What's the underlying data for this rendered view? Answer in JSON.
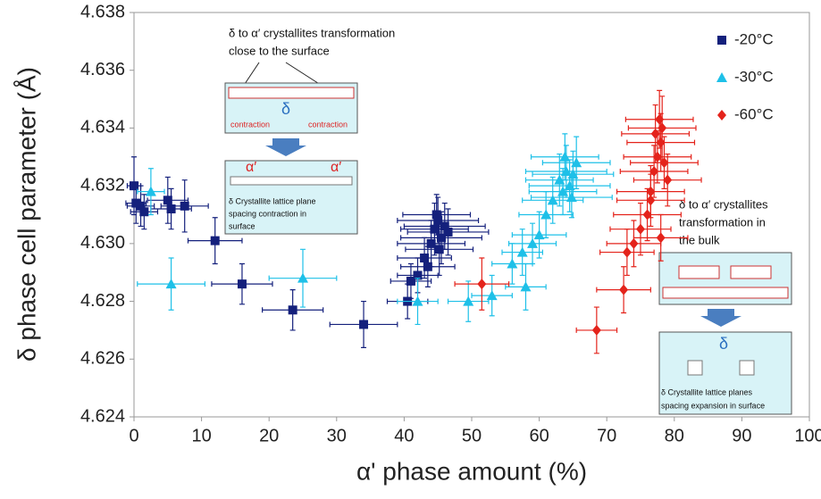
{
  "chart_data": {
    "type": "scatter",
    "xlabel": "α' phase amount (%)",
    "ylabel": "δ phase cell parameter (Å)",
    "xlim": [
      0,
      100
    ],
    "xticks": [
      0,
      10,
      20,
      30,
      40,
      50,
      60,
      70,
      80,
      90,
      100
    ],
    "ylim": [
      4.624,
      4.638
    ],
    "yticks": [
      4.624,
      4.626,
      4.628,
      {
        "value": 4.63,
        "label": "4.630"
      },
      4.632,
      4.634,
      4.636,
      4.638
    ],
    "legend": "top-right",
    "series": [
      {
        "name": "-20°C",
        "color": "#14207c",
        "marker": "square",
        "x": [
          0,
          0.3,
          1,
          1.5,
          5,
          5.5,
          7.5,
          12,
          16,
          23.5,
          34,
          40.5,
          41,
          42,
          43,
          43.5,
          44,
          44.5,
          45,
          45.5,
          46,
          44.8,
          45.2,
          46.5
        ],
        "y": [
          4.632,
          4.6314,
          4.6313,
          4.6311,
          4.6315,
          4.6312,
          4.6313,
          4.6301,
          4.6286,
          4.6277,
          4.6272,
          4.628,
          4.6287,
          4.6289,
          4.6295,
          4.6292,
          4.63,
          4.6305,
          4.6308,
          4.6302,
          4.6306,
          4.631,
          4.6298,
          4.6304
        ],
        "x_err": [
          1,
          1.5,
          2,
          2,
          3,
          3,
          3.5,
          4,
          4.5,
          4.5,
          5,
          3,
          3,
          3,
          4,
          4,
          5,
          5,
          6,
          6,
          6,
          5,
          5,
          6
        ],
        "y_err": [
          0.001,
          0.0007,
          0.0007,
          0.0006,
          0.0008,
          0.0007,
          0.0009,
          0.0008,
          0.0007,
          0.0007,
          0.0008,
          0.0006,
          0.0006,
          0.0006,
          0.0007,
          0.0007,
          0.0008,
          0.0009,
          0.0008,
          0.0009,
          0.0008,
          0.0007,
          0.0009,
          0.0008
        ]
      },
      {
        "name": "-30°C",
        "color": "#1ec0e8",
        "marker": "triangle",
        "x": [
          2.5,
          5.5,
          25,
          42,
          49.5,
          53,
          56,
          57.5,
          58,
          59,
          60,
          61,
          62,
          63,
          63.5,
          64,
          64.5,
          65,
          65.5,
          63.8,
          64.8
        ],
        "y": [
          4.6318,
          4.6286,
          4.6288,
          4.628,
          4.628,
          4.6282,
          4.6293,
          4.6297,
          4.6285,
          4.63,
          4.6303,
          4.631,
          4.6315,
          4.6322,
          4.6318,
          4.6325,
          4.632,
          4.6324,
          4.6328,
          4.633,
          4.6316
        ],
        "x_err": [
          2,
          5,
          5,
          3,
          3,
          3,
          3,
          3,
          3,
          3.5,
          4,
          4,
          4.5,
          5,
          5,
          6,
          6,
          6,
          5,
          5,
          6
        ],
        "y_err": [
          0.0008,
          0.0009,
          0.001,
          0.0008,
          0.0007,
          0.0007,
          0.0007,
          0.0008,
          0.0008,
          0.0007,
          0.0008,
          0.0008,
          0.0008,
          0.0009,
          0.0008,
          0.0009,
          0.0009,
          0.0008,
          0.0009,
          0.0008,
          0.0007
        ]
      },
      {
        "name": "-60°C",
        "color": "#e4231b",
        "marker": "diamond",
        "x": [
          51.5,
          68.5,
          72.5,
          73,
          74,
          75,
          76,
          76.5,
          77,
          77.5,
          78,
          78.2,
          77.8,
          78.5,
          79,
          78,
          76.5,
          77.2
        ],
        "y": [
          4.6286,
          4.627,
          4.6284,
          4.6297,
          4.63,
          4.6305,
          4.631,
          4.6318,
          4.6325,
          4.633,
          4.6335,
          4.634,
          4.6343,
          4.6328,
          4.6322,
          4.6302,
          4.6315,
          4.6338
        ],
        "x_err": [
          4,
          3,
          4,
          4,
          4,
          4.5,
          5,
          5,
          5,
          5,
          5,
          5,
          5,
          5,
          5,
          4,
          5,
          5
        ],
        "y_err": [
          0.0009,
          0.0008,
          0.0008,
          0.0008,
          0.0008,
          0.0009,
          0.0009,
          0.0009,
          0.0009,
          0.0009,
          0.001,
          0.0011,
          0.001,
          0.0009,
          0.0009,
          0.0008,
          0.0009,
          0.001
        ]
      }
    ],
    "annotations": [
      {
        "text": "δ to α′ crystallites transformation",
        "text2": "close to the surface",
        "label": "contraction",
        "symbol": "δ",
        "symbol2": "α′",
        "caption": "δ Crystallite lattice plane",
        "caption2": "spacing contraction in",
        "caption3": "surface"
      },
      {
        "text": "δ to α′ crystallites",
        "text2": "transformation in",
        "text3": "the bulk",
        "symbol": "δ",
        "caption": "δ Crystallite lattice planes",
        "caption2": "spacing expansion in surface"
      }
    ]
  }
}
